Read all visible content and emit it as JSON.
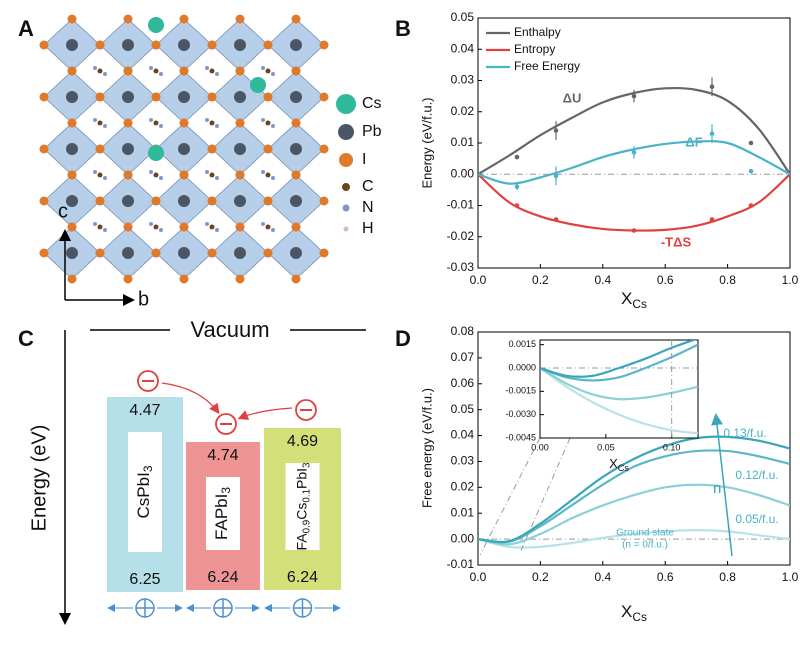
{
  "panel_labels": [
    "A",
    "B",
    "C",
    "D"
  ],
  "structure": {
    "legend": [
      "Cs",
      "Pb",
      "I",
      "C",
      "N",
      "H"
    ],
    "legend_colors": [
      "#2fb89a",
      "#4a5566",
      "#e07a2a",
      "#6b4420",
      "#8094c8",
      "#d9b8bc"
    ],
    "axis_c": "c",
    "axis_b": "b"
  },
  "chart_data": [
    {
      "type": "line",
      "xlabel": "X",
      "xlabel_sub": "Cs",
      "ylabel": "Energy (eV/f.u.)",
      "xlim": [
        0,
        1
      ],
      "ylim": [
        -0.03,
        0.05
      ],
      "xticks": [
        {
          "value": 0,
          "label": "0.0"
        },
        0.2,
        0.4,
        0.6,
        0.8,
        {
          "value": 1,
          "label": "1.0"
        }
      ],
      "yticks": [
        -0.03,
        -0.02,
        -0.01,
        {
          "value": 0,
          "label": "0.00"
        },
        0.01,
        0.02,
        0.03,
        0.04,
        0.05
      ],
      "zero_line": true,
      "legend": "upper left",
      "x": [
        0,
        0.1,
        0.2,
        0.3,
        0.4,
        0.5,
        0.6,
        0.7,
        0.8,
        0.9,
        1
      ],
      "series": [
        {
          "name": "Enthalpy",
          "color": "#666666",
          "values": [
            0,
            0.006,
            0.0125,
            0.018,
            0.023,
            0.026,
            0.0275,
            0.027,
            0.0235,
            0.0145,
            0
          ]
        },
        {
          "name": "Entropy",
          "color": "#e0403f",
          "values": [
            0,
            -0.009,
            -0.0135,
            -0.016,
            -0.0175,
            -0.018,
            -0.0178,
            -0.0165,
            -0.0135,
            -0.009,
            0
          ]
        },
        {
          "name": "Free Energy",
          "color": "#4ab3c8",
          "values": [
            0,
            -0.003,
            -0.001,
            0.002,
            0.0055,
            0.008,
            0.0097,
            0.0105,
            0.01,
            0.0055,
            0
          ]
        }
      ],
      "points": [
        {
          "color": "#666666",
          "x": [
            0.125,
            0.25,
            0.5,
            0.75,
            0.875
          ],
          "values": [
            0.0055,
            0.014,
            0.025,
            0.028,
            0.01
          ],
          "errors": [
            0.0005,
            0.003,
            0.002,
            0.003,
            0.0005
          ]
        },
        {
          "color": "#e0403f",
          "x": [
            0.125,
            0.25,
            0.5,
            0.75,
            0.875
          ],
          "values": [
            -0.01,
            -0.0145,
            -0.018,
            -0.0145,
            -0.01
          ],
          "errors": [
            0.0003,
            0.0003,
            0.0003,
            0.0003,
            0.0003
          ]
        },
        {
          "color": "#4ab3c8",
          "x": [
            0.125,
            0.25,
            0.5,
            0.75,
            0.875
          ],
          "values": [
            -0.004,
            -0.0005,
            0.007,
            0.013,
            0.001
          ],
          "errors": [
            0.001,
            0.003,
            0.002,
            0.003,
            0.0005
          ]
        }
      ],
      "annotations": [
        "ΔU",
        "ΔF",
        "-TΔS"
      ]
    },
    {
      "type": "line",
      "xlabel": "X",
      "xlabel_sub": "Cs",
      "ylabel": "Free energy (eV/f.u.)",
      "xlim": [
        0,
        1
      ],
      "ylim": [
        -0.01,
        0.08
      ],
      "xticks": [
        {
          "value": 0,
          "label": "0.0"
        },
        0.2,
        0.4,
        0.6,
        0.8,
        {
          "value": 1,
          "label": "1.0"
        }
      ],
      "yticks": [
        -0.01,
        {
          "value": 0,
          "label": "0.00"
        },
        0.01,
        0.02,
        0.03,
        0.04,
        0.05,
        0.06,
        0.07,
        0.08
      ],
      "zero_line": true,
      "x": [
        0,
        0.1,
        0.2,
        0.3,
        0.4,
        0.5,
        0.6,
        0.7,
        0.8,
        0.9,
        1
      ],
      "series": [
        {
          "name": "Ground state",
          "color": "#b9e2e8",
          "values": [
            0,
            -0.003,
            -0.003,
            -0.0015,
            0.0005,
            0.002,
            0.003,
            0.0035,
            0.003,
            0.0015,
            0
          ]
        },
        {
          "name": "0.05/f.u.",
          "color": "#8dcfd9",
          "values": [
            0,
            -0.002,
            0.002,
            0.008,
            0.013,
            0.017,
            0.02,
            0.021,
            0.02,
            0.017,
            0.013
          ]
        },
        {
          "name": "0.12/f.u.",
          "color": "#5bb7c8",
          "values": [
            0,
            -0.001,
            0.005,
            0.013,
            0.021,
            0.028,
            0.032,
            0.034,
            0.034,
            0.032,
            0.029
          ]
        },
        {
          "name": "0.13/f.u.",
          "color": "#3aa6bb",
          "values": [
            0,
            -0.0008,
            0.006,
            0.015,
            0.024,
            0.031,
            0.036,
            0.039,
            0.0395,
            0.038,
            0.035
          ]
        }
      ],
      "annotations": [
        "(n = 0/f.u.)",
        "n"
      ],
      "inset": {
        "xlabel": "X",
        "xlabel_sub": "Cs",
        "xlim": [
          0,
          0.12
        ],
        "ylim": [
          -0.0045,
          0.0018
        ],
        "xticks": [
          {
            "value": 0,
            "label": "0.00"
          },
          0.05,
          {
            "value": 0.1,
            "label": "0.10"
          }
        ],
        "yticks": [
          {
            "value": 0.0015,
            "label": "0.0015"
          },
          {
            "value": 0,
            "label": "0.0000"
          },
          {
            "value": -0.0015,
            "label": "-0.0015"
          },
          {
            "value": -0.003,
            "label": "-0.0030"
          },
          {
            "value": -0.0045,
            "label": "-0.0045"
          }
        ],
        "zero_line": true,
        "x": [
          0,
          0.02,
          0.04,
          0.06,
          0.08,
          0.1,
          0.12
        ],
        "series": [
          {
            "color": "#b9e2e8",
            "values": [
              0,
              -0.0012,
              -0.0022,
              -0.003,
              -0.0036,
              -0.004,
              -0.0042
            ]
          },
          {
            "color": "#8dcfd9",
            "values": [
              0,
              -0.001,
              -0.0017,
              -0.002,
              -0.0019,
              -0.0016,
              -0.0012
            ]
          },
          {
            "color": "#5bb7c8",
            "values": [
              0,
              -0.0006,
              -0.0008,
              -0.0006,
              0,
              0.0007,
              0.0015
            ]
          },
          {
            "color": "#3aa6bb",
            "values": [
              0,
              -0.0005,
              -0.0005,
              0,
              0.0006,
              0.0013,
              0.0019
            ]
          }
        ]
      }
    }
  ],
  "band_diagram": {
    "vacuum": "Vacuum",
    "ylabel": "Energy (eV)",
    "materials": [
      {
        "name": [
          {
            "text": "CsPbI"
          },
          {
            "text": "3",
            "sub": true
          }
        ],
        "top": "4.47",
        "bottom": "6.25",
        "color": "#b5dfe9"
      },
      {
        "name": [
          {
            "text": "FAPbI"
          },
          {
            "text": "3",
            "sub": true
          }
        ],
        "top": "4.74",
        "bottom": "6.24",
        "color": "#ef9494"
      },
      {
        "name": [
          {
            "text": "FA"
          },
          {
            "text": "0.9",
            "sub": true
          },
          {
            "text": "Cs"
          },
          {
            "text": "0.1",
            "sub": true
          },
          {
            "text": "PbI"
          },
          {
            "text": "3",
            "sub": true
          }
        ],
        "top": "4.69",
        "bottom": "6.24",
        "color": "#d3e07a"
      }
    ]
  }
}
